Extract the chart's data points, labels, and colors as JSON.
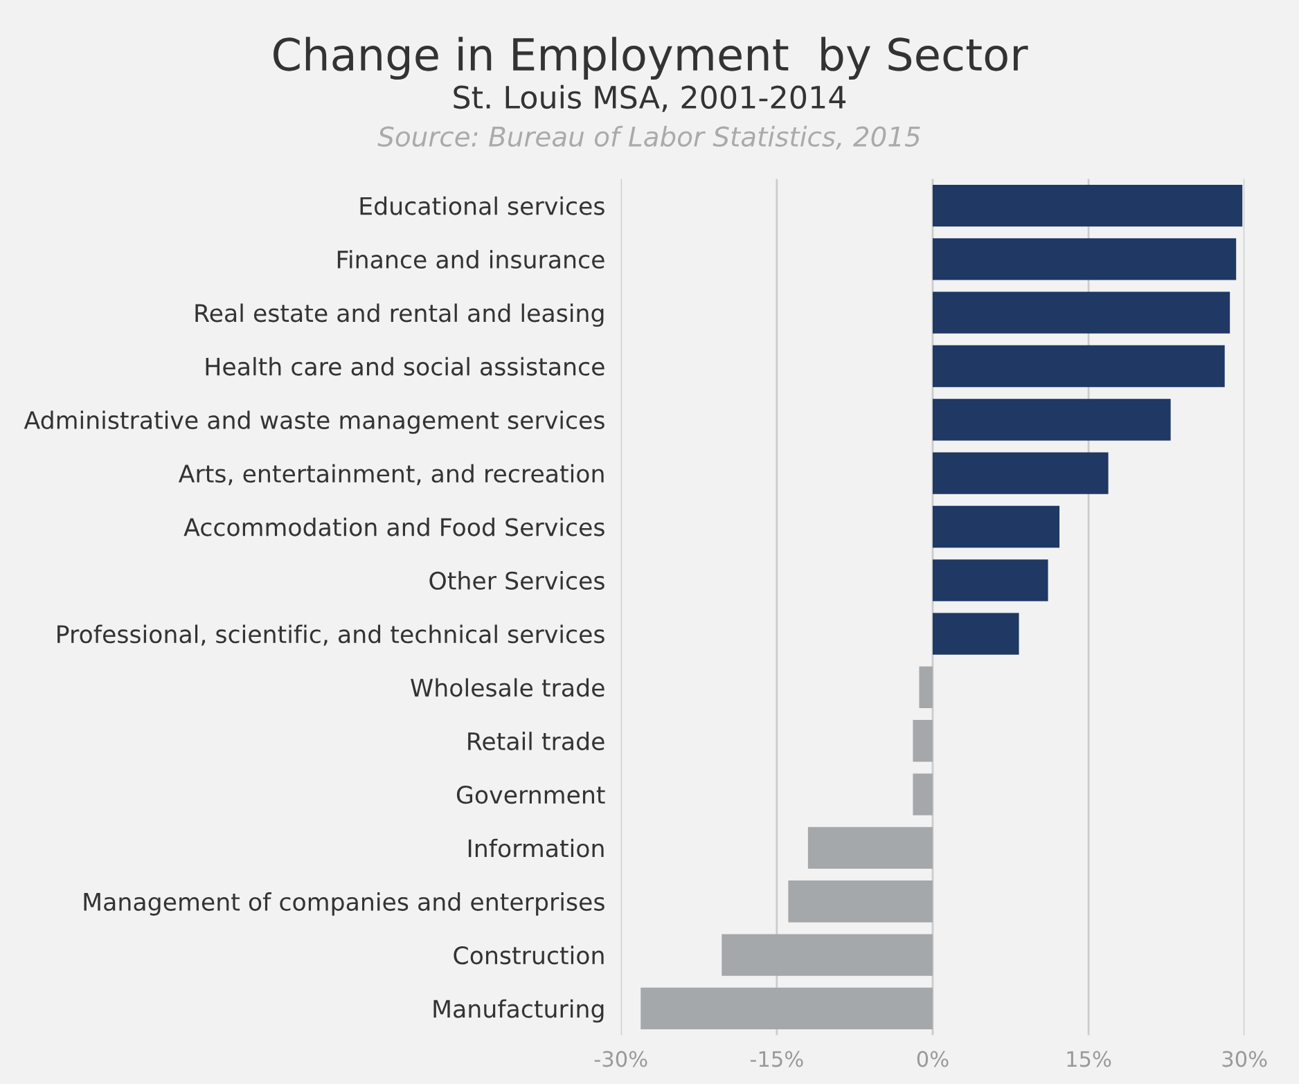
{
  "chart_data": {
    "type": "bar",
    "orientation": "horizontal",
    "title": "Change in Employment  by Sector",
    "subtitle": "St. Louis MSA, 2001-2014",
    "annotations": [
      "Source: Bureau of Labor Statistics, 2015"
    ],
    "categories": [
      "Educational services",
      "Finance and insurance",
      "Real estate and rental and leasing",
      "Health care and social assistance",
      "Administrative and waste management services",
      "Arts, entertainment, and recreation",
      "Accommodation and Food Services",
      "Other Services",
      "Professional, scientific, and technical services",
      "Wholesale trade",
      "Retail trade",
      "Government",
      "Information",
      "Management of companies and enterprises",
      "Construction",
      "Manufacturing"
    ],
    "values": [
      29.8,
      29.2,
      28.6,
      28.1,
      22.9,
      16.9,
      12.2,
      11.1,
      8.3,
      -1.3,
      -1.9,
      -1.9,
      -12.0,
      -13.9,
      -20.3,
      -28.1
    ],
    "colors": [
      "#1f3864",
      "#1f3864",
      "#1f3864",
      "#1f3864",
      "#1f3864",
      "#1f3864",
      "#1f3864",
      "#1f3864",
      "#1f3864",
      "#a5a8ab",
      "#a5a8ab",
      "#a5a8ab",
      "#a5a8ab",
      "#a5a8ab",
      "#a5a8ab",
      "#a5a8ab"
    ],
    "xlim": [
      -30,
      30
    ],
    "xticks": [
      {
        "value": -30,
        "label": "-30%"
      },
      {
        "value": -15,
        "label": "-15%"
      },
      {
        "value": 0,
        "label": "0%"
      },
      {
        "value": 15,
        "label": "15%"
      },
      {
        "value": 30,
        "label": "30%"
      }
    ],
    "grid": "x"
  }
}
